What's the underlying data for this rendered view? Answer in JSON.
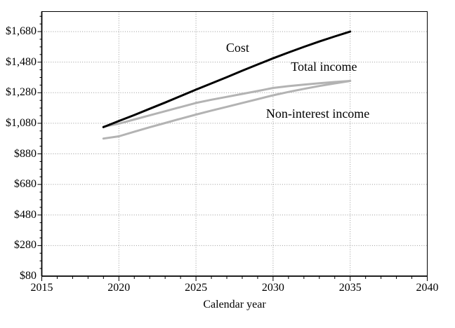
{
  "chart_data": {
    "type": "line",
    "title": "",
    "xlabel": "Calendar year",
    "ylabel": "",
    "xlim": [
      2015,
      2040
    ],
    "ylim": [
      80,
      1811
    ],
    "x_major_ticks": [
      2015,
      2020,
      2025,
      2030,
      2035,
      2040
    ],
    "x_tick_labels": [
      "2015",
      "2020",
      "2025",
      "2030",
      "2035",
      "2040"
    ],
    "x_minor_step": 1,
    "y_major_ticks": [
      80,
      280,
      480,
      680,
      880,
      1080,
      1280,
      1480,
      1680
    ],
    "y_tick_labels": [
      "$80",
      "$280",
      "$480",
      "$680",
      "$880",
      "$1,080",
      "$1,280",
      "$1,480",
      "$1,680"
    ],
    "y_minor_step": 50,
    "grid": {
      "on": true,
      "style": "dotted",
      "vertical_years": [
        2020,
        2025,
        2030,
        2035
      ],
      "horizontal_values": [
        280,
        480,
        680,
        880,
        1080,
        1280,
        1480,
        1680
      ]
    },
    "legend_position": "none",
    "x": [
      2019,
      2020,
      2021,
      2022,
      2023,
      2024,
      2025,
      2026,
      2027,
      2028,
      2029,
      2030,
      2031,
      2032,
      2033,
      2034,
      2035
    ],
    "series": [
      {
        "name": "Non-interest income",
        "color": "#b3b3b3",
        "width": 3,
        "values": [
          980,
          995,
          1025,
          1054,
          1082,
          1110,
          1137,
          1163,
          1188,
          1213,
          1238,
          1263,
          1285,
          1305,
          1324,
          1341,
          1357
        ]
      },
      {
        "name": "Total income",
        "color": "#b3b3b3",
        "width": 3,
        "values": [
          1057,
          1078,
          1105,
          1132,
          1159,
          1186,
          1213,
          1234,
          1253,
          1272,
          1291,
          1311,
          1323,
          1333,
          1342,
          1350,
          1357
        ]
      },
      {
        "name": "Cost",
        "color": "#000000",
        "width": 3,
        "values": [
          1055,
          1095,
          1134,
          1175,
          1216,
          1258,
          1300,
          1341,
          1382,
          1424,
          1465,
          1505,
          1543,
          1580,
          1615,
          1648,
          1680
        ]
      }
    ],
    "annotations": [
      {
        "text": "Cost",
        "x": 2027.7,
        "y": 1575
      },
      {
        "text": "Total income",
        "x": 2033.3,
        "y": 1449
      },
      {
        "text": "Non-interest income",
        "x": 2032.9,
        "y": 1142
      }
    ],
    "colors": {
      "cost_line": "#000000",
      "income_lines": "#b3b3b3",
      "gridlines": "#999999",
      "frame": "#000000",
      "background": "#ffffff"
    }
  }
}
